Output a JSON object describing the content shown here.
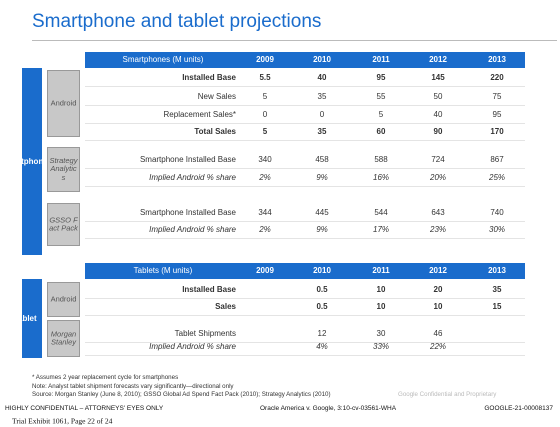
{
  "header": {
    "title": "Smartphone and tablet projections"
  },
  "smartphones": {
    "side_label": "rtphones",
    "columns": [
      "Smartphones (M units)",
      "2009",
      "2010",
      "2011",
      "2012",
      "2013"
    ],
    "groups": [
      {
        "source": "Android",
        "rows": [
          {
            "label": "Installed Base",
            "style": "bold",
            "values": [
              "5.5",
              "40",
              "95",
              "145",
              "220"
            ]
          },
          {
            "label": "New Sales",
            "style": "normal",
            "values": [
              "5",
              "35",
              "55",
              "50",
              "75"
            ]
          },
          {
            "label": "Replacement Sales*",
            "style": "normal",
            "values": [
              "0",
              "0",
              "5",
              "40",
              "95"
            ]
          },
          {
            "label": "Total Sales",
            "style": "bold",
            "values": [
              "5",
              "35",
              "60",
              "90",
              "170"
            ]
          }
        ]
      },
      {
        "source": "Strategy Analytics",
        "rows": [
          {
            "label": "Smartphone Installed Base",
            "style": "normal",
            "values": [
              "340",
              "458",
              "588",
              "724",
              "867"
            ]
          },
          {
            "label": "Implied Android % share",
            "style": "italic",
            "values": [
              "2%",
              "9%",
              "16%",
              "20%",
              "25%"
            ]
          }
        ]
      },
      {
        "source": "GSSO Fact Pack",
        "rows": [
          {
            "label": "Smartphone Installed Base",
            "style": "normal",
            "values": [
              "344",
              "445",
              "544",
              "643",
              "740"
            ]
          },
          {
            "label": "Implied Android % share",
            "style": "italic",
            "values": [
              "2%",
              "9%",
              "17%",
              "23%",
              "30%"
            ]
          }
        ]
      }
    ]
  },
  "tablets": {
    "side_label": "ablet",
    "columns": [
      "Tablets (M units)",
      "2009",
      "2010",
      "2011",
      "2012",
      "2013"
    ],
    "groups": [
      {
        "source": "Android",
        "rows": [
          {
            "label": "Installed Base",
            "style": "bold",
            "values": [
              null,
              "0.5",
              "10",
              "20",
              "35"
            ]
          },
          {
            "label": "Sales",
            "style": "bold",
            "values": [
              null,
              "0.5",
              "10",
              "10",
              "15"
            ]
          }
        ]
      },
      {
        "source": "Morgan Stanley",
        "rows": [
          {
            "label": "Tablet Shipments",
            "style": "normal",
            "values": [
              null,
              "12",
              "30",
              "46",
              null
            ]
          },
          {
            "label": "Implied Android % share",
            "style": "italic",
            "values": [
              null,
              "4%",
              "33%",
              "22%",
              null
            ]
          }
        ]
      }
    ]
  },
  "notes": [
    "* Assumes 2 year replacement cycle for smartphones",
    "Note: Analyst tablet shipment forecasts vary significantly—directional only",
    "Source: Morgan Stanley (June 8, 2010); GSSO Global Ad Spend Fact Pack (2010); Strategy Analytics (2010)"
  ],
  "watermark": "Google Confidential and Proprietary",
  "footer": {
    "left": "HIGHLY CONFIDENTIAL – ATTORNEYS' EYES ONLY",
    "center": "Oracle America v. Google, 3:10-cv-03561-WHA",
    "right": "GOOGLE-21-00008137"
  },
  "exhibit": "Trial Exhibit 1061, Page 22 of 24"
}
